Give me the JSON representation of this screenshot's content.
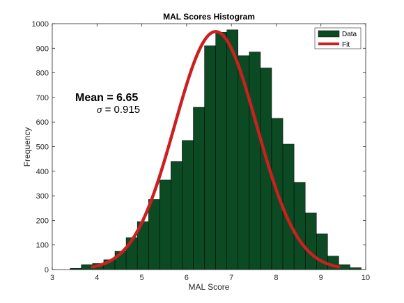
{
  "chart_data": {
    "type": "bar",
    "title": "MAL Scores Histogram",
    "xlabel": "MAL Score",
    "ylabel": "Frequency",
    "xlim": [
      3,
      10
    ],
    "ylim": [
      0,
      1000
    ],
    "xticks": [
      3,
      4,
      5,
      6,
      7,
      8,
      9,
      10
    ],
    "yticks": [
      0,
      100,
      200,
      300,
      400,
      500,
      600,
      700,
      800,
      900,
      1000
    ],
    "grid": false,
    "legend": {
      "placement": "top-right",
      "entries": [
        "Data",
        "Fit"
      ]
    },
    "bar_color": "#0b4a23",
    "fit_color": "#cc1f1f",
    "bins": [
      {
        "x0": 3.4,
        "x1": 3.65,
        "y": 5
      },
      {
        "x0": 3.65,
        "x1": 3.9,
        "y": 20
      },
      {
        "x0": 3.9,
        "x1": 4.15,
        "y": 25
      },
      {
        "x0": 4.15,
        "x1": 4.4,
        "y": 40
      },
      {
        "x0": 4.4,
        "x1": 4.65,
        "y": 75
      },
      {
        "x0": 4.65,
        "x1": 4.9,
        "y": 130
      },
      {
        "x0": 4.9,
        "x1": 5.15,
        "y": 195
      },
      {
        "x0": 5.15,
        "x1": 5.4,
        "y": 285
      },
      {
        "x0": 5.4,
        "x1": 5.65,
        "y": 365
      },
      {
        "x0": 5.65,
        "x1": 5.9,
        "y": 440
      },
      {
        "x0": 5.9,
        "x1": 6.15,
        "y": 525
      },
      {
        "x0": 6.15,
        "x1": 6.4,
        "y": 660
      },
      {
        "x0": 6.4,
        "x1": 6.65,
        "y": 910
      },
      {
        "x0": 6.65,
        "x1": 6.9,
        "y": 965
      },
      {
        "x0": 6.9,
        "x1": 7.15,
        "y": 975
      },
      {
        "x0": 7.15,
        "x1": 7.4,
        "y": 870
      },
      {
        "x0": 7.4,
        "x1": 7.65,
        "y": 885
      },
      {
        "x0": 7.65,
        "x1": 7.9,
        "y": 820
      },
      {
        "x0": 7.9,
        "x1": 8.15,
        "y": 615
      },
      {
        "x0": 8.15,
        "x1": 8.4,
        "y": 510
      },
      {
        "x0": 8.4,
        "x1": 8.65,
        "y": 355
      },
      {
        "x0": 8.65,
        "x1": 8.9,
        "y": 230
      },
      {
        "x0": 8.9,
        "x1": 9.15,
        "y": 145
      },
      {
        "x0": 9.15,
        "x1": 9.4,
        "y": 55
      },
      {
        "x0": 9.4,
        "x1": 9.65,
        "y": 20
      },
      {
        "x0": 9.65,
        "x1": 9.9,
        "y": 8
      }
    ],
    "fit": {
      "mean": 6.65,
      "sigma": 0.915,
      "peak": 968,
      "x_range": [
        3.9,
        9.4
      ]
    },
    "annotations": {
      "mean_text": "Mean = 6.65",
      "sigma_symbol": "σ",
      "sigma_text": " = 0.915"
    }
  }
}
